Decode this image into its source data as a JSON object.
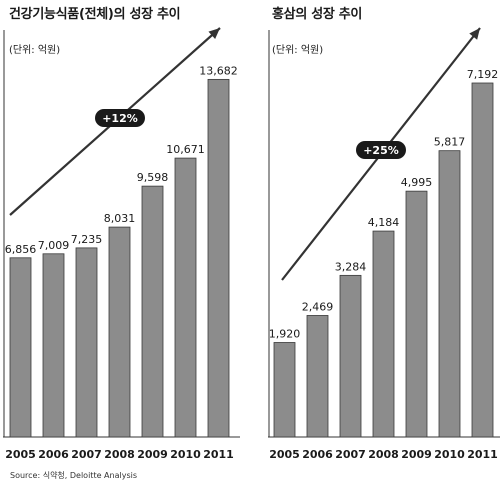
{
  "chart_data": [
    {
      "type": "bar",
      "title": "건강기능식품(전체)의 성장 추이",
      "unit": "(단위: 억원)",
      "categories": [
        "2005",
        "2006",
        "2007",
        "2008",
        "2009",
        "2010",
        "2011"
      ],
      "values": [
        6856,
        7009,
        7235,
        8031,
        9598,
        10671,
        13682
      ],
      "value_labels": [
        "6,856",
        "7,009",
        "7,235",
        "8,031",
        "9,598",
        "10,671",
        "13,682"
      ],
      "ylim": [
        0,
        14500
      ],
      "annotation": "+12%",
      "trend_arrow": true,
      "grid": false,
      "bar_color": "#8c8c8c"
    },
    {
      "type": "bar",
      "title": "홍삼의 성장 추이",
      "unit": "(단위: 억원)",
      "categories": [
        "2005",
        "2006",
        "2007",
        "2008",
        "2009",
        "2010",
        "2011"
      ],
      "values": [
        1920,
        2469,
        3284,
        4184,
        4995,
        5817,
        7192
      ],
      "value_labels": [
        "1,920",
        "2,469",
        "3,284",
        "4,184",
        "4,995",
        "5,817",
        "7,192"
      ],
      "ylim": [
        0,
        7700
      ],
      "annotation": "+25%",
      "trend_arrow": true,
      "grid": false,
      "bar_color": "#8c8c8c"
    }
  ],
  "source": "Source:  식약청, Deloitte Analysis",
  "colors": {
    "bar": "#8c8c8c",
    "bar_edge": "#3a3a3a",
    "axis": "#333333",
    "badge": "#1a1a1a",
    "badge_text": "#ffffff"
  }
}
